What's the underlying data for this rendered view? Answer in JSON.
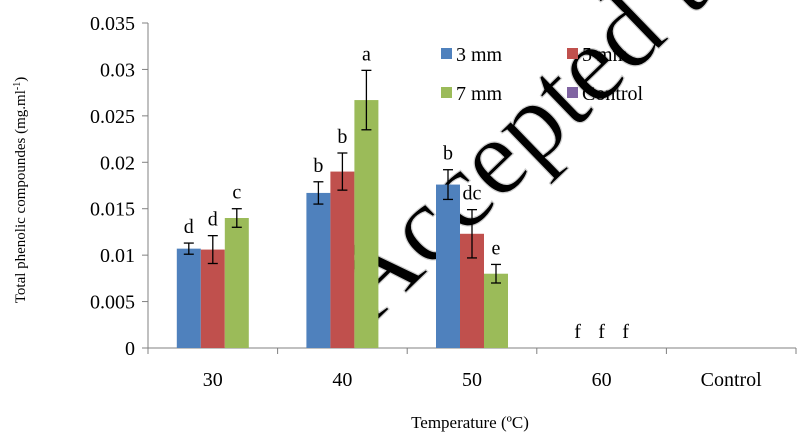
{
  "chart_data": {
    "type": "bar",
    "title": "",
    "xlabel": "Temperature (ºC)",
    "ylabel": "Total phenolic compoundes (mg.ml",
    "ylabel_sup": "-1",
    "ylabel_end": ")",
    "ylim": [
      0,
      0.035
    ],
    "yticks": [
      "0",
      "0.005",
      "0.01",
      "0.015",
      "0.02",
      "0.025",
      "0.03",
      "0.035"
    ],
    "categories": [
      "30",
      "40",
      "50",
      "60",
      "Control"
    ],
    "series": [
      {
        "name": "3 mm",
        "color": "#4f81bd",
        "values": [
          0.0107,
          0.0167,
          0.0176,
          0,
          null
        ],
        "errors": [
          0.0006,
          0.0012,
          0.0016,
          0,
          null
        ],
        "labels": [
          "d",
          "b",
          "b",
          "f",
          ""
        ]
      },
      {
        "name": "5 mm",
        "color": "#c0504d",
        "values": [
          0.0106,
          0.019,
          0.0123,
          0,
          null
        ],
        "errors": [
          0.0015,
          0.002,
          0.0026,
          0,
          null
        ],
        "labels": [
          "d",
          "b",
          "dc",
          "f",
          ""
        ]
      },
      {
        "name": "7 mm",
        "color": "#9bbb59",
        "values": [
          0.014,
          0.0267,
          0.008,
          0,
          null
        ],
        "errors": [
          0.001,
          0.0032,
          0.001,
          0,
          null
        ],
        "labels": [
          "c",
          "a",
          "e",
          "f",
          ""
        ]
      },
      {
        "name": "Control",
        "color": "#8064a2",
        "values": [
          null,
          null,
          null,
          null,
          null
        ],
        "errors": [
          null,
          null,
          null,
          null,
          null
        ],
        "labels": [
          "",
          "",
          "",
          "",
          ""
        ]
      }
    ],
    "legend_position": "top-right",
    "grid": false
  },
  "watermark": {
    "text": "Accepted to Online"
  }
}
